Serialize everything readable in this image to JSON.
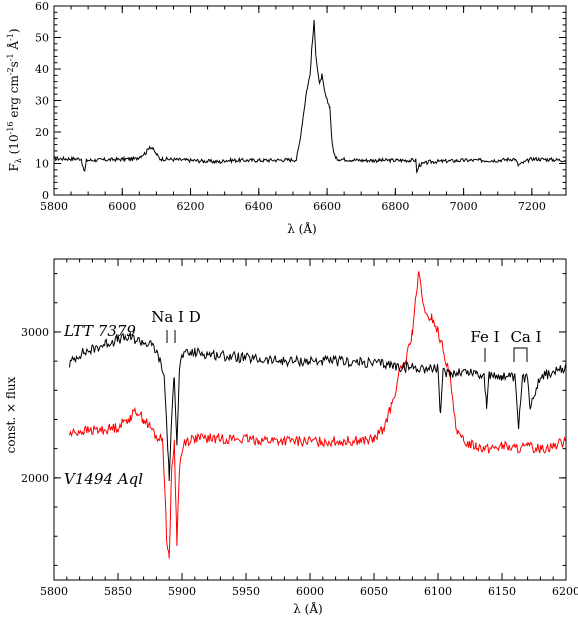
{
  "chart_data": [
    {
      "type": "line",
      "xlabel": "λ (Å)",
      "ylabel_parts": {
        "main": "F",
        "sub": "λ",
        "paren_open": "(10",
        "exp": "-16",
        "unit": "erg cm",
        "unit_exp2": "-2",
        "unit_s": "s",
        "unit_exp1": "-1",
        "unit_a": "Å",
        "unit_exp3": "-1",
        "paren_close": ")"
      },
      "xlim": [
        5800,
        7300
      ],
      "ylim": [
        0,
        60
      ],
      "xticks": [
        5800,
        6000,
        6200,
        6400,
        6600,
        6800,
        7000,
        7200
      ],
      "yticks": [
        0,
        10,
        20,
        30,
        40,
        50,
        60
      ],
      "color": "#000000",
      "series": [
        {
          "x": [
            5800,
            5880,
            5885,
            5890,
            5895,
            5960,
            6040,
            6070,
            6080,
            6090,
            6110,
            6200,
            6290,
            6300,
            6400,
            6510,
            6520,
            6530,
            6540,
            6550,
            6555,
            6562,
            6567,
            6572,
            6578,
            6585,
            6592,
            6600,
            6608,
            6615,
            6625,
            6700,
            6860,
            6863,
            6870,
            6900,
            7000,
            7100,
            7150,
            7160,
            7200,
            7300
          ],
          "y": [
            11.5,
            11.5,
            8.5,
            7.5,
            11,
            11.2,
            11.5,
            13.5,
            15.5,
            14.5,
            11.5,
            11,
            10.5,
            11,
            11,
            11.2,
            17,
            25,
            33,
            38,
            46,
            55,
            45,
            40,
            35,
            38,
            33,
            30,
            28,
            16,
            11.5,
            11,
            11,
            7,
            9.5,
            10.5,
            11,
            11,
            11.5,
            9.5,
            11.5,
            11
          ]
        }
      ]
    },
    {
      "type": "line",
      "xlabel": "λ (Å)",
      "ylabel": "const. × flux",
      "xlim": [
        5800,
        6200
      ],
      "ylim": [
        1300,
        3500
      ],
      "xticks": [
        5800,
        5850,
        5900,
        5950,
        6000,
        6050,
        6100,
        6150,
        6200
      ],
      "yticks": [
        2000,
        3000
      ],
      "series": [
        {
          "name": "LTT 7379",
          "color": "#000000",
          "x": [
            5812,
            5820,
            5830,
            5840,
            5850,
            5860,
            5870,
            5878,
            5882,
            5886,
            5888,
            5890,
            5892,
            5894,
            5896,
            5898,
            5900,
            5910,
            5920,
            5940,
            5960,
            5980,
            6000,
            6020,
            6040,
            6060,
            6070,
            6080,
            6090,
            6100,
            6102,
            6104,
            6110,
            6120,
            6130,
            6136,
            6138,
            6140,
            6150,
            6160,
            6163,
            6166,
            6170,
            6172,
            6180,
            6190,
            6200
          ],
          "y": [
            2780,
            2850,
            2880,
            2920,
            2950,
            2960,
            2930,
            2900,
            2820,
            2700,
            2380,
            2000,
            2400,
            2720,
            2250,
            2740,
            2840,
            2860,
            2850,
            2830,
            2810,
            2800,
            2800,
            2800,
            2790,
            2780,
            2760,
            2760,
            2750,
            2750,
            2420,
            2720,
            2720,
            2730,
            2720,
            2700,
            2500,
            2700,
            2700,
            2680,
            2350,
            2680,
            2680,
            2500,
            2700,
            2720,
            2750
          ]
        },
        {
          "name": "V1494 Aql",
          "color": "#ff0000",
          "x": [
            5812,
            5820,
            5840,
            5850,
            5860,
            5865,
            5870,
            5875,
            5880,
            5885,
            5888,
            5890,
            5892,
            5894,
            5896,
            5898,
            5902,
            5910,
            5930,
            5960,
            5990,
            6020,
            6050,
            6058,
            6064,
            6070,
            6075,
            6080,
            6083,
            6085,
            6088,
            6090,
            6095,
            6100,
            6105,
            6110,
            6115,
            6120,
            6130,
            6140,
            6150,
            6160,
            6170,
            6180,
            6190,
            6200
          ],
          "y": [
            2300,
            2320,
            2330,
            2350,
            2420,
            2460,
            2400,
            2350,
            2280,
            2260,
            1600,
            1450,
            2050,
            2250,
            1550,
            2080,
            2250,
            2270,
            2270,
            2260,
            2250,
            2250,
            2260,
            2350,
            2500,
            2720,
            2800,
            3000,
            3250,
            3400,
            3230,
            3100,
            3100,
            3000,
            2850,
            2650,
            2300,
            2250,
            2220,
            2200,
            2220,
            2200,
            2210,
            2200,
            2220,
            2250
          ]
        }
      ],
      "annotations": {
        "na": "Na I D",
        "fe": "Fe I",
        "ca": "Ca I",
        "ltt": "LTT 7379",
        "v1494": "V1494 Aql"
      }
    }
  ]
}
